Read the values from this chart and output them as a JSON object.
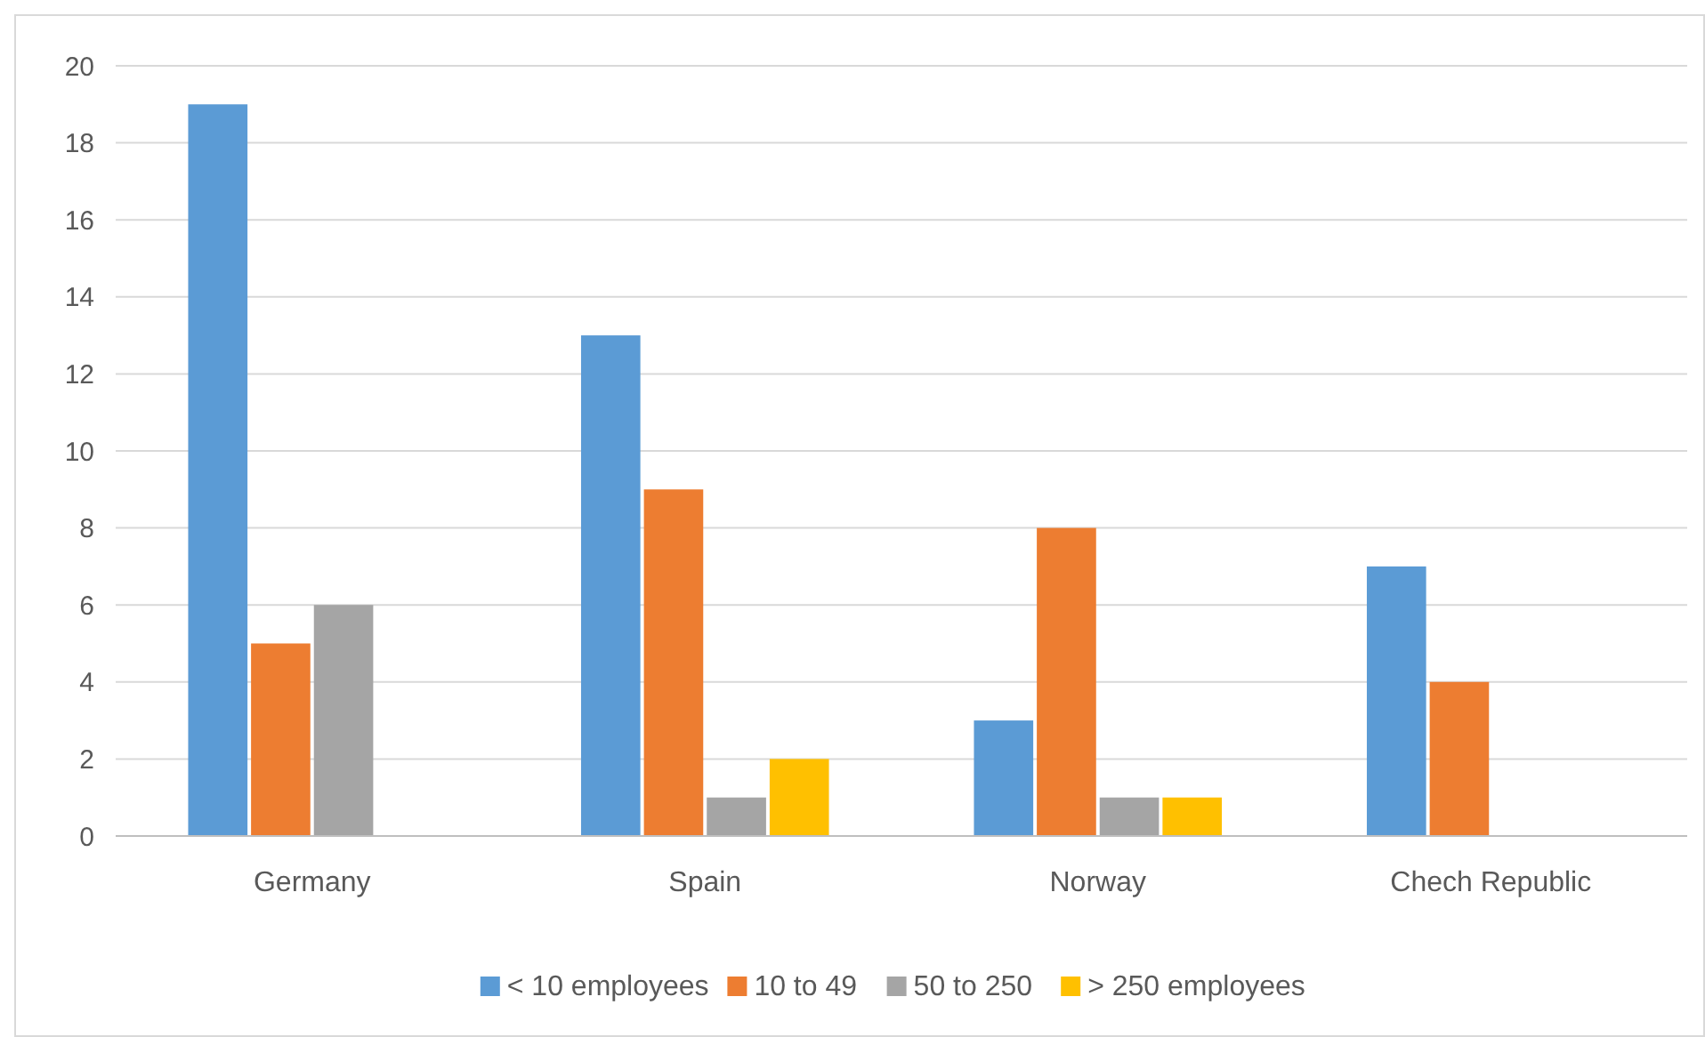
{
  "chart_data": {
    "type": "bar",
    "categories": [
      "Germany",
      "Spain",
      "Norway",
      "Chech Republic"
    ],
    "series": [
      {
        "name": "< 10 employees",
        "color": "#5b9bd5",
        "values": [
          19,
          13,
          3,
          7
        ]
      },
      {
        "name": "10 to 49",
        "color": "#ed7d31",
        "values": [
          5,
          9,
          8,
          4
        ]
      },
      {
        "name": "50 to 250",
        "color": "#a5a5a5",
        "values": [
          6,
          1,
          1,
          0
        ]
      },
      {
        "name": "> 250 employees",
        "color": "#ffc000",
        "values": [
          0,
          2,
          1,
          0
        ]
      }
    ],
    "ylim": [
      0,
      20
    ],
    "yticks": [
      0,
      2,
      4,
      6,
      8,
      10,
      12,
      14,
      16,
      18,
      20
    ],
    "grid": "y",
    "legend": "bottom"
  }
}
